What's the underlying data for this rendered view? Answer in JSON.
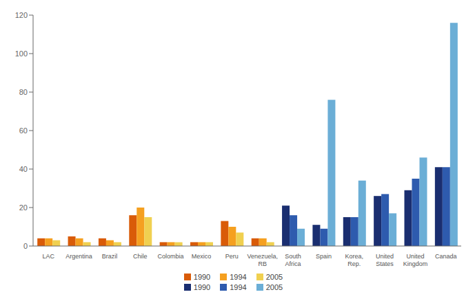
{
  "chart_data": {
    "type": "bar",
    "categories": [
      "LAC",
      "Argentina",
      "Brazil",
      "Chile",
      "Colombia",
      "Mexico",
      "Peru",
      "Venezuela,\nRB",
      "South\nAfrica",
      "Spain",
      "Korea,\nRep.",
      "United\nStates",
      "United\nKingdom",
      "Canada"
    ],
    "series": [
      {
        "name": "1990",
        "color": "#D95B08",
        "values": [
          4,
          5,
          4,
          16,
          2,
          2,
          13,
          4,
          0,
          0,
          0,
          0,
          0,
          0
        ]
      },
      {
        "name": "1994",
        "color": "#F5A020",
        "values": [
          4,
          4,
          3,
          20,
          2,
          2,
          10,
          4,
          0,
          0,
          0,
          0,
          0,
          0
        ]
      },
      {
        "name": "2005",
        "color": "#F0D050",
        "values": [
          3,
          2,
          2,
          15,
          2,
          2,
          7,
          2,
          0,
          0,
          0,
          0,
          0,
          0
        ]
      },
      {
        "name": "1990",
        "color": "#1A2E70",
        "values": [
          0,
          0,
          0,
          0,
          0,
          0,
          0,
          0,
          21,
          11,
          15,
          26,
          29,
          41
        ]
      },
      {
        "name": "1994",
        "color": "#2E5BAE",
        "values": [
          0,
          0,
          0,
          0,
          0,
          0,
          0,
          0,
          16,
          9,
          15,
          27,
          35,
          41
        ]
      },
      {
        "name": "2005",
        "color": "#6BAED6",
        "values": [
          0,
          0,
          0,
          0,
          0,
          0,
          0,
          0,
          9,
          76,
          34,
          17,
          46,
          116
        ]
      }
    ],
    "ylim": [
      0,
      120
    ],
    "yticks": [
      0,
      20,
      40,
      60,
      80,
      100,
      120
    ],
    "grid": false,
    "legend": "bottom"
  }
}
